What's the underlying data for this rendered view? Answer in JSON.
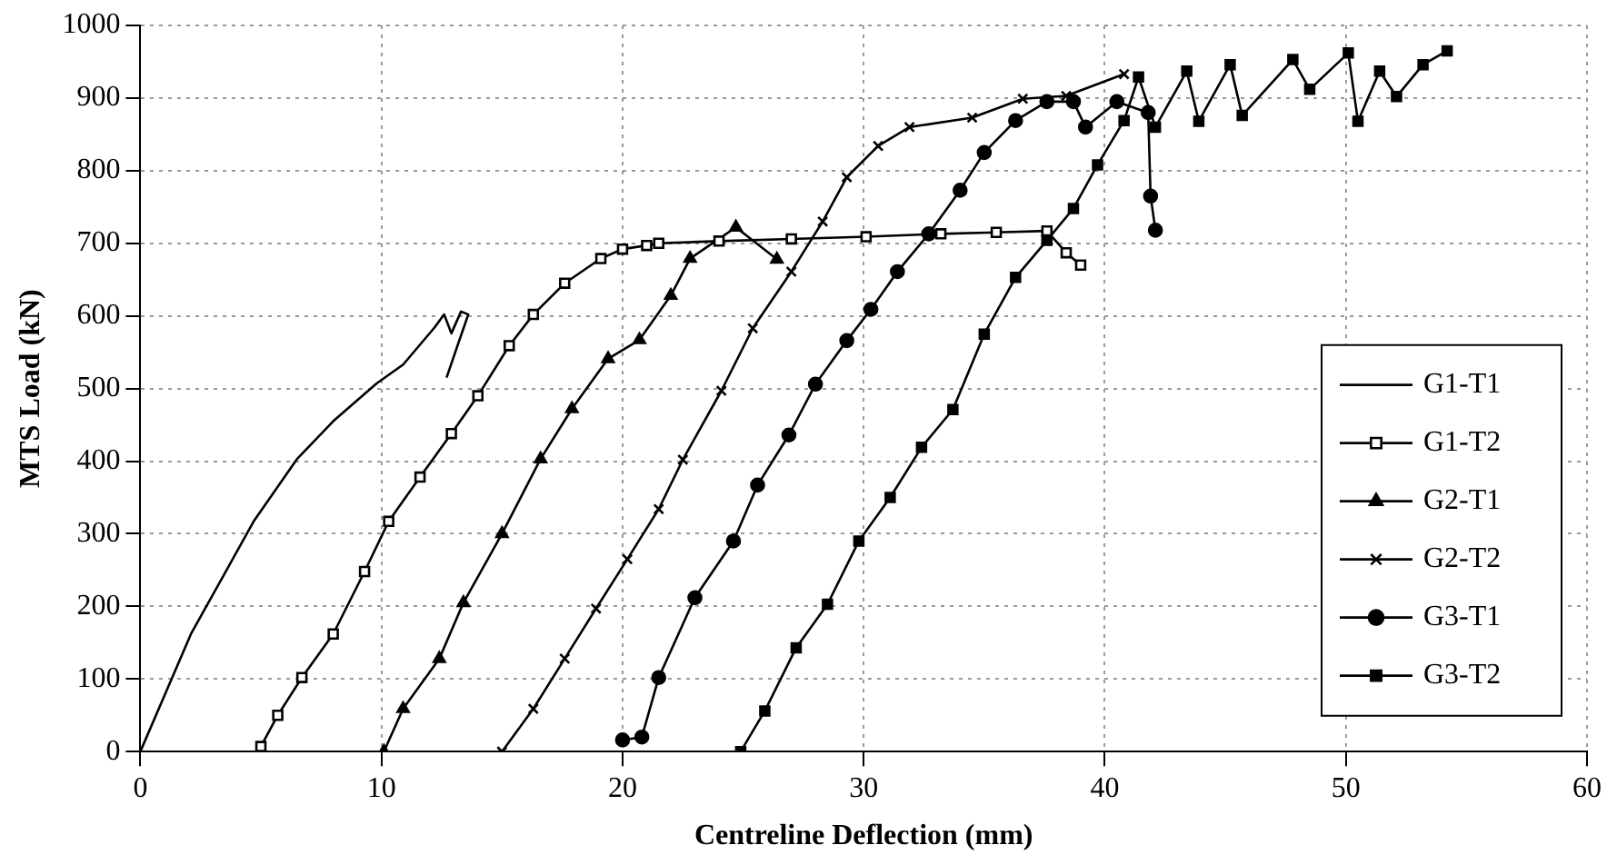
{
  "chart_data": {
    "type": "line",
    "xlabel": "Centreline Deflection (mm)",
    "ylabel": "MTS Load (kN)",
    "xlim": [
      0,
      60
    ],
    "xticks": [
      0,
      10,
      20,
      30,
      40,
      50,
      60
    ],
    "ylim": [
      0,
      1000
    ],
    "yticks": [
      0,
      100,
      200,
      300,
      400,
      500,
      600,
      700,
      800,
      900,
      1000
    ],
    "grid": true,
    "legend": "right",
    "line_style": "solid",
    "series": [
      {
        "name": "G1-T1",
        "color": "#000000",
        "marker": "none",
        "x": [
          0,
          2.1,
          4.7,
          6.5,
          8.0,
          9.8,
          10.9,
          12.2,
          12.6,
          12.9,
          13.3,
          13.6,
          12.7
        ],
        "values": [
          0,
          162,
          317,
          403,
          455,
          507,
          533,
          584,
          602,
          576,
          606,
          602,
          515
        ]
      },
      {
        "name": "G1-T2",
        "color": "#000000",
        "marker": "square",
        "x": [
          5.0,
          5.7,
          6.7,
          8.0,
          9.3,
          10.3,
          11.6,
          12.9,
          14.0,
          15.3,
          16.3,
          17.6,
          19.1,
          20.0,
          21.0,
          21.5,
          24,
          27,
          30.1,
          33.2,
          35.5,
          37.6,
          38.4,
          39.0
        ],
        "values": [
          7,
          50,
          102,
          162,
          248,
          317,
          378,
          438,
          490,
          559,
          602,
          645,
          679,
          692,
          697,
          700,
          703,
          706,
          709,
          713,
          715,
          717,
          687,
          670
        ]
      },
      {
        "name": "G2-T1",
        "color": "#000000",
        "marker": "triangle",
        "x": [
          10.1,
          10.9,
          12.4,
          13.4,
          15.0,
          16.6,
          17.9,
          19.4,
          20.7,
          22.0,
          22.8,
          24.7,
          26.4
        ],
        "values": [
          0,
          59,
          128,
          205,
          300,
          403,
          472,
          541,
          567,
          628,
          679,
          722,
          678
        ]
      },
      {
        "name": "G2-T2",
        "color": "#000000",
        "marker": "cross",
        "x": [
          15.0,
          16.3,
          17.6,
          18.9,
          20.2,
          21.5,
          22.5,
          24.1,
          25.4,
          27.0,
          28.3,
          29.3,
          30.6,
          31.9,
          34.5,
          36.6,
          38.4,
          40.8
        ],
        "values": [
          0,
          59,
          128,
          197,
          265,
          334,
          402,
          497,
          583,
          661,
          730,
          791,
          834,
          860,
          873,
          899,
          903,
          933
        ]
      },
      {
        "name": "G3-T1",
        "color": "#000000",
        "marker": "circle",
        "x": [
          20.0,
          20.8,
          21.5,
          23.0,
          24.6,
          25.6,
          26.9,
          28.0,
          29.3,
          30.3,
          31.4,
          32.7,
          34.0,
          35.0,
          36.3,
          37.6,
          38.7,
          39.2,
          40.5,
          41.8,
          41.9,
          42.1
        ],
        "values": [
          16,
          20,
          102,
          212,
          290,
          367,
          436,
          506,
          566,
          609,
          661,
          713,
          773,
          825,
          869,
          895,
          895,
          860,
          895,
          880,
          765,
          718
        ]
      },
      {
        "name": "G3-T2",
        "color": "#000000",
        "marker": "square",
        "x": [
          24.9,
          25.9,
          27.2,
          28.5,
          29.8,
          31.1,
          32.4,
          33.7,
          35.0,
          36.3,
          37.6,
          38.7,
          39.7,
          40.8,
          41.4,
          42.1,
          43.4,
          43.9,
          45.2,
          45.7,
          47.8,
          48.5,
          50.1,
          50.5,
          51.4,
          52.1,
          53.2,
          54.2
        ],
        "values": [
          0,
          56,
          143,
          203,
          290,
          350,
          419,
          471,
          575,
          653,
          704,
          748,
          808,
          869,
          929,
          860,
          937,
          868,
          946,
          876,
          953,
          912,
          962,
          868,
          937,
          902,
          946,
          965
        ]
      }
    ]
  }
}
